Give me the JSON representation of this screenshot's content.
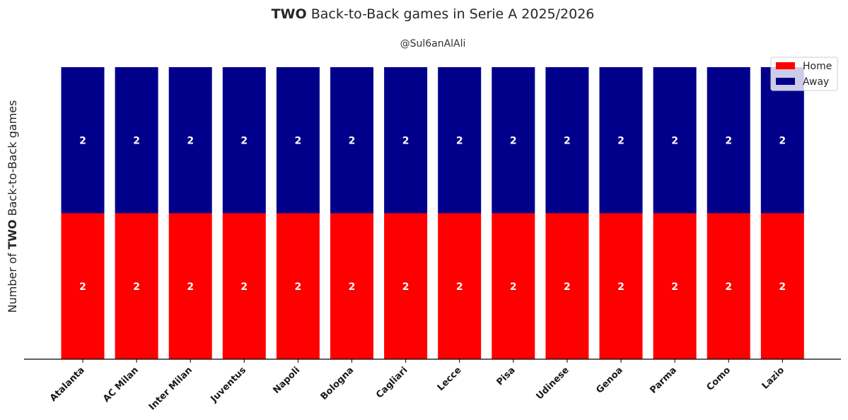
{
  "chart_data": {
    "type": "bar",
    "stacked": true,
    "title_bold": "TWO",
    "title_rest": " Back-to-Back games in Serie A 2025/2026",
    "subtitle": "@Sul6anAlAli",
    "ylabel_prefix": "Number of ",
    "ylabel_bold": "TWO",
    "ylabel_suffix": " Back-to-Back games",
    "xlabel": "",
    "ylim": [
      0,
      4
    ],
    "grid": false,
    "legend_position": "top-right",
    "categories": [
      "Atalanta",
      "AC Milan",
      "Inter Milan",
      "Juventus",
      "Napoli",
      "Bologna",
      "Cagliari",
      "Lecce",
      "Pisa",
      "Udinese",
      "Genoa",
      "Parma",
      "Como",
      "Lazio"
    ],
    "series": [
      {
        "name": "Home",
        "color": "#ff0000",
        "values": [
          2,
          2,
          2,
          2,
          2,
          2,
          2,
          2,
          2,
          2,
          2,
          2,
          2,
          2
        ]
      },
      {
        "name": "Away",
        "color": "#00008b",
        "values": [
          2,
          2,
          2,
          2,
          2,
          2,
          2,
          2,
          2,
          2,
          2,
          2,
          2,
          2
        ]
      }
    ]
  }
}
